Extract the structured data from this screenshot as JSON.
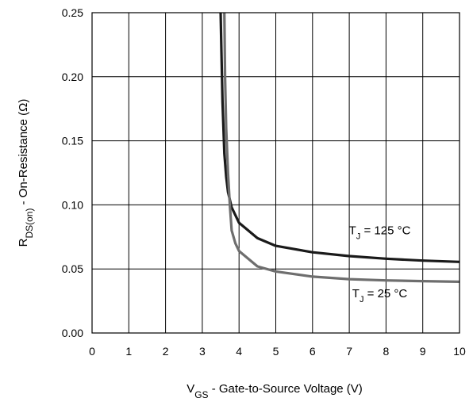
{
  "chart_data": {
    "type": "line",
    "title": "",
    "xlabel": {
      "main": "V",
      "sub": "GS",
      "rest": " - Gate-to-Source Voltage (V)"
    },
    "ylabel": {
      "main": "R",
      "sub": "DS(on)",
      "rest": " - On-Resistance (Ω)"
    },
    "xlim": [
      0,
      10
    ],
    "ylim": [
      0,
      0.25
    ],
    "xticks": [
      "0",
      "1",
      "2",
      "3",
      "4",
      "5",
      "6",
      "7",
      "8",
      "9",
      "10"
    ],
    "yticks": [
      "0.00",
      "0.05",
      "0.10",
      "0.15",
      "0.20",
      "0.25"
    ],
    "grid": true,
    "series": [
      {
        "name": "TJ = 125 °C",
        "color": "#1a1a1a",
        "x": [
          3.5,
          3.52,
          3.55,
          3.6,
          3.65,
          3.7,
          3.75,
          3.8,
          4.0,
          4.5,
          5.0,
          6.0,
          7.0,
          8.0,
          9.0,
          10.0
        ],
        "y": [
          0.25,
          0.22,
          0.18,
          0.14,
          0.122,
          0.11,
          0.104,
          0.098,
          0.086,
          0.074,
          0.068,
          0.063,
          0.06,
          0.058,
          0.0565,
          0.0555
        ]
      },
      {
        "name": "TJ = 25 °C",
        "color": "#6e6e6e",
        "x": [
          3.6,
          3.62,
          3.65,
          3.7,
          3.75,
          3.8,
          3.9,
          4.0,
          4.5,
          5.0,
          6.0,
          7.0,
          8.0,
          9.0,
          10.0
        ],
        "y": [
          0.25,
          0.2,
          0.16,
          0.125,
          0.1,
          0.08,
          0.07,
          0.064,
          0.052,
          0.048,
          0.044,
          0.042,
          0.041,
          0.0405,
          0.04
        ]
      }
    ],
    "annotations": [
      {
        "main": "T",
        "sub": "J",
        "rest": " = 125 °C",
        "x": 7.83,
        "y": 0.077
      },
      {
        "main": "T",
        "sub": "J",
        "rest": " = 25 °C",
        "x": 7.83,
        "y": 0.028
      }
    ]
  }
}
